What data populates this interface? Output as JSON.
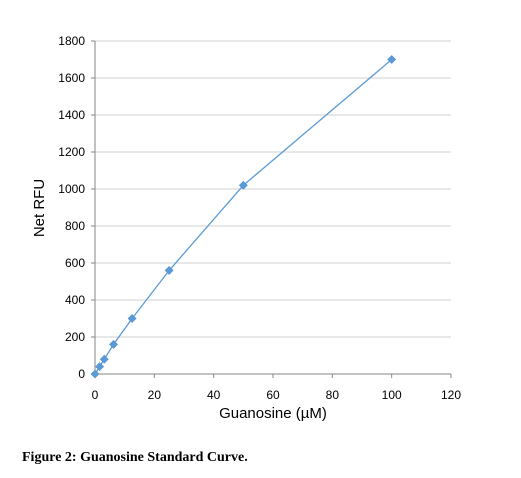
{
  "caption": "Figure 2: Guanosine Standard Curve.",
  "chart_data": {
    "type": "line",
    "title": "",
    "xlabel": "Guanosine (µM)",
    "ylabel": "Net RFU",
    "xlim": [
      0,
      120
    ],
    "ylim": [
      0,
      1800
    ],
    "x_ticks": [
      0,
      20,
      40,
      60,
      80,
      100,
      120
    ],
    "y_ticks": [
      0,
      200,
      400,
      600,
      800,
      1000,
      1200,
      1400,
      1600,
      1800
    ],
    "grid": "horizontal",
    "legend": "none",
    "series": [
      {
        "color": "#5b9bd5",
        "marker": "diamond",
        "x": [
          0,
          1.56,
          3.13,
          6.25,
          12.5,
          25,
          50,
          100
        ],
        "y": [
          0,
          40,
          80,
          160,
          300,
          560,
          1020,
          1700
        ]
      }
    ]
  }
}
